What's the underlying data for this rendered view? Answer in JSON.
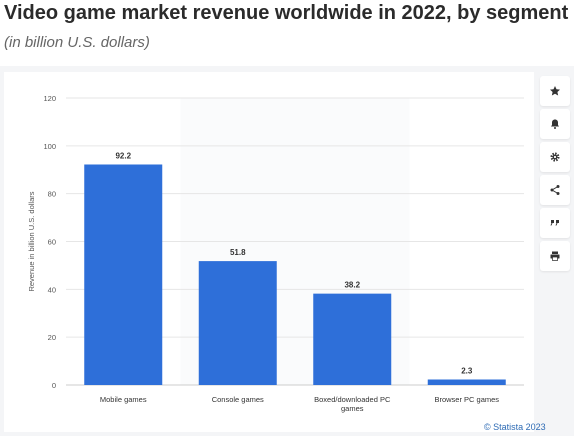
{
  "title": "Video game market revenue worldwide in 2022, by segment",
  "subtitle": "(in billion U.S. dollars)",
  "source_credit": "© Statista 2023",
  "toolbar": {
    "icons": [
      "star-icon",
      "bell-icon",
      "gear-icon",
      "share-icon",
      "quote-icon",
      "print-icon"
    ]
  },
  "colors": {
    "bar": "#2e6fd9",
    "grid": "#e6e6e6",
    "tick_text": "#555555",
    "panel": "#f4f5f7",
    "credit": "#2f6cb5"
  },
  "chart_data": {
    "type": "bar",
    "title": "Video game market revenue worldwide in 2022, by segment",
    "subtitle": "(in billion U.S. dollars)",
    "xlabel": "",
    "ylabel": "Revenue in billion U.S. dollars",
    "categories": [
      "Mobile games",
      "Console games",
      "Boxed/downloaded PC games",
      "Browser PC games"
    ],
    "category_lines": [
      [
        "Mobile games"
      ],
      [
        "Console games"
      ],
      [
        "Boxed/downloaded PC",
        "games"
      ],
      [
        "Browser PC games"
      ]
    ],
    "values": [
      92.2,
      51.8,
      38.2,
      2.3
    ],
    "data_labels": [
      "92.2",
      "51.8",
      "38.2",
      "2.3"
    ],
    "ylim": [
      0,
      120
    ],
    "yticks": [
      0,
      20,
      40,
      60,
      80,
      100,
      120
    ],
    "grid": true,
    "legend": "none"
  }
}
